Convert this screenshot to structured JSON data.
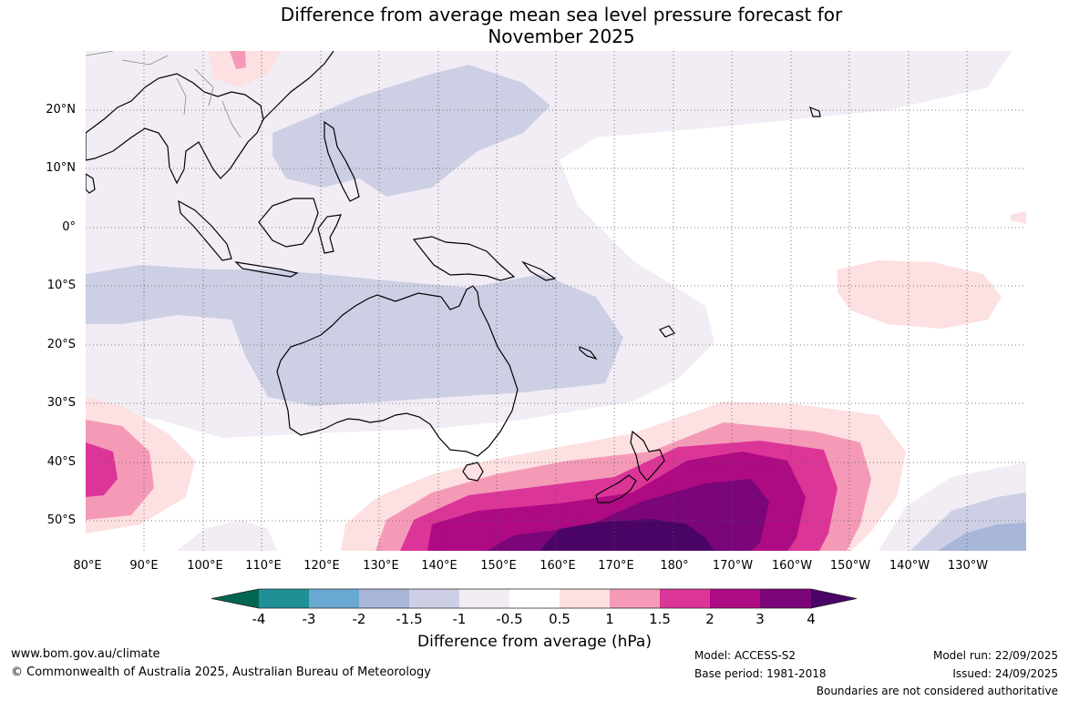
{
  "title": {
    "line1": "Difference from average mean sea level pressure forecast for",
    "line2": "November 2025"
  },
  "axes": {
    "latitudes": [
      "20°N",
      "10°N",
      "0°",
      "10°S",
      "20°S",
      "30°S",
      "40°S",
      "50°S"
    ],
    "longitudes": [
      "80°E",
      "90°E",
      "100°E",
      "110°E",
      "120°E",
      "130°E",
      "140°E",
      "150°E",
      "160°E",
      "170°E",
      "180°",
      "170°W",
      "160°W",
      "150°W",
      "140°W",
      "130°W"
    ]
  },
  "legend": {
    "ticks": [
      "-4",
      "-3",
      "-2",
      "-1.5",
      "-1",
      "-0.5",
      "0.5",
      "1",
      "1.5",
      "2",
      "3",
      "4"
    ],
    "colors": [
      "#006652",
      "#1f9095",
      "#6aaad2",
      "#a8b6d8",
      "#cdd0e4",
      "#f2ecf5",
      "#ffffff",
      "#fde0e1",
      "#f49ab7",
      "#dc3598",
      "#ad0a83",
      "#7a0679",
      "#4a0466"
    ],
    "label": "Difference from average (hPa)"
  },
  "footer": {
    "website": "www.bom.gov.au/climate",
    "copyright": "© Commonwealth of Australia 2025, Australian Bureau of Meteorology",
    "model": "Model: ACCESS-S2",
    "base_period": "Base period: 1981-2018",
    "model_run": "Model run: 22/09/2025",
    "issued": "Issued: 24/09/2025",
    "disclaimer": "Boundaries are not considered authoritative"
  }
}
